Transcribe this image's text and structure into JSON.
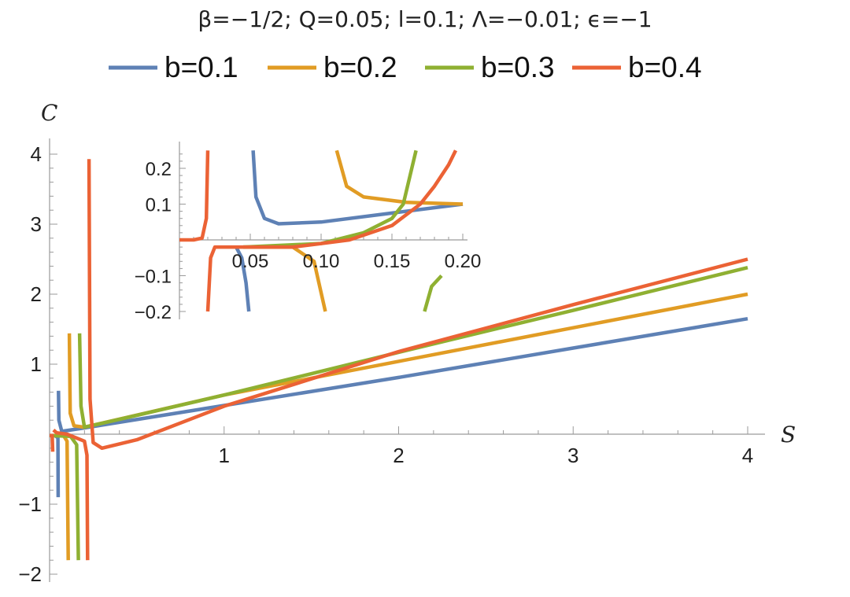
{
  "chart_data": [
    {
      "type": "line",
      "title": "β=−1/2; Q=0.05; l=0.1; Λ=−0.01; ϵ=−1",
      "xlabel": "S",
      "ylabel": "C",
      "xlim": [
        0,
        4
      ],
      "ylim": [
        -2,
        4
      ],
      "xticks": [
        1,
        2,
        3,
        4
      ],
      "xtick_labels": [
        "1",
        "2",
        "3",
        "4"
      ],
      "yticks": [
        -2,
        -1,
        1,
        2,
        3,
        4
      ],
      "ytick_labels": [
        "−2",
        "−1",
        "1",
        "2",
        "3",
        "4"
      ],
      "grid": false,
      "legend_position": "top",
      "series": [
        {
          "name": "b=0.1",
          "color": "#5e81b5",
          "poles": [
            0.05
          ],
          "points": [
            [
              0.0,
              -0.02
            ],
            [
              0.03,
              -0.02
            ],
            [
              0.048,
              -0.05
            ],
            [
              0.049,
              -0.9
            ],
            "break",
            [
              0.051,
              0.62
            ],
            [
              0.053,
              0.2
            ],
            [
              0.07,
              0.04
            ],
            [
              0.2,
              0.09
            ],
            [
              1.0,
              0.41
            ],
            [
              2.0,
              0.81
            ],
            [
              3.0,
              1.23
            ],
            [
              4.0,
              1.65
            ]
          ]
        },
        {
          "name": "b=0.2",
          "color": "#e19c24",
          "poles": [
            0.11
          ],
          "points": [
            [
              0.0,
              -0.02
            ],
            [
              0.08,
              -0.02
            ],
            [
              0.1,
              -0.1
            ],
            [
              0.107,
              -1.8
            ],
            "break",
            [
              0.113,
              1.44
            ],
            [
              0.118,
              0.3
            ],
            [
              0.14,
              0.12
            ],
            [
              0.2,
              0.1
            ],
            [
              1.0,
              0.56
            ],
            [
              2.0,
              1.04
            ],
            [
              3.0,
              1.52
            ],
            [
              4.0,
              2.0
            ]
          ]
        },
        {
          "name": "b=0.3",
          "color": "#8fb032",
          "poles": [
            0.17
          ],
          "points": [
            [
              0.0,
              -0.02
            ],
            [
              0.12,
              -0.03
            ],
            [
              0.155,
              -0.15
            ],
            [
              0.165,
              -1.8
            ],
            "break",
            [
              0.172,
              1.44
            ],
            [
              0.18,
              0.4
            ],
            [
              0.2,
              0.1
            ],
            [
              0.5,
              0.27
            ],
            [
              1.0,
              0.56
            ],
            [
              2.0,
              1.17
            ],
            [
              3.0,
              1.77
            ],
            [
              4.0,
              2.38
            ]
          ]
        },
        {
          "name": "b=0.4",
          "color": "#eb6235",
          "poles": [
            0.02,
            0.22
          ],
          "points": [
            [
              0.0,
              -0.02
            ],
            [
              0.015,
              -0.02
            ],
            [
              0.018,
              -0.25
            ],
            "break",
            [
              0.022,
              0.06
            ],
            [
              0.04,
              0.02
            ],
            [
              0.1,
              0.0
            ],
            [
              0.2,
              -0.1
            ],
            [
              0.214,
              -0.3
            ],
            [
              0.218,
              -1.8
            ],
            "break",
            [
              0.226,
              3.93
            ],
            [
              0.232,
              0.5
            ],
            [
              0.25,
              -0.12
            ],
            [
              0.3,
              -0.2
            ],
            [
              0.5,
              -0.08
            ],
            [
              1.0,
              0.4
            ],
            [
              2.0,
              1.18
            ],
            [
              3.0,
              1.85
            ],
            [
              4.0,
              2.5
            ]
          ]
        }
      ]
    },
    {
      "type": "line",
      "title": "",
      "xlabel": "",
      "ylabel": "",
      "xlim": [
        0.0,
        0.2
      ],
      "ylim": [
        -0.2,
        0.2
      ],
      "xticks": [
        0.05,
        0.1,
        0.15,
        0.2
      ],
      "xtick_labels": [
        "0.05",
        "0.10",
        "0.15",
        "0.20"
      ],
      "yticks": [
        -0.2,
        -0.1,
        0.1,
        0.2
      ],
      "ytick_labels": [
        "−0.2",
        "−0.1",
        "0.1",
        "0.2"
      ],
      "grid": false,
      "series": [
        {
          "name": "b=0.1",
          "color": "#5e81b5",
          "points": [
            [
              0.04,
              -0.02
            ],
            [
              0.044,
              -0.05
            ],
            [
              0.047,
              -0.12
            ],
            [
              0.049,
              -0.2
            ],
            "break",
            [
              0.052,
              0.25
            ],
            [
              0.054,
              0.12
            ],
            [
              0.06,
              0.06
            ],
            [
              0.07,
              0.045
            ],
            [
              0.1,
              0.05
            ],
            [
              0.15,
              0.075
            ],
            [
              0.2,
              0.1
            ]
          ]
        },
        {
          "name": "b=0.2",
          "color": "#e19c24",
          "points": [
            [
              0.045,
              -0.02
            ],
            [
              0.08,
              -0.02
            ],
            [
              0.095,
              -0.06
            ],
            [
              0.103,
              -0.2
            ],
            "break",
            [
              0.111,
              0.25
            ],
            [
              0.118,
              0.15
            ],
            [
              0.13,
              0.12
            ],
            [
              0.16,
              0.105
            ],
            [
              0.2,
              0.1
            ]
          ]
        },
        {
          "name": "b=0.3",
          "color": "#8fb032",
          "points": [
            [
              0.045,
              -0.02
            ],
            [
              0.1,
              -0.01
            ],
            [
              0.13,
              0.02
            ],
            [
              0.15,
              0.06
            ],
            [
              0.158,
              0.1
            ],
            [
              0.164,
              0.2
            ],
            [
              0.167,
              0.25
            ],
            "break",
            [
              0.173,
              -0.2
            ],
            [
              0.178,
              -0.13
            ],
            [
              0.185,
              -0.1
            ]
          ]
        },
        {
          "name": "b=0.4",
          "color": "#eb6235",
          "points": [
            [
              0.0,
              0.0
            ],
            [
              0.01,
              0.0
            ],
            [
              0.016,
              0.005
            ],
            [
              0.019,
              0.06
            ],
            [
              0.02,
              0.25
            ],
            "break",
            [
              0.02,
              -0.2
            ],
            [
              0.022,
              -0.05
            ],
            [
              0.025,
              -0.02
            ],
            [
              0.04,
              -0.02
            ],
            [
              0.08,
              -0.02
            ],
            [
              0.1,
              -0.01
            ],
            [
              0.12,
              0.0
            ],
            [
              0.15,
              0.04
            ],
            [
              0.17,
              0.1
            ],
            [
              0.18,
              0.15
            ],
            [
              0.19,
              0.21
            ],
            [
              0.195,
              0.25
            ]
          ]
        }
      ]
    }
  ]
}
